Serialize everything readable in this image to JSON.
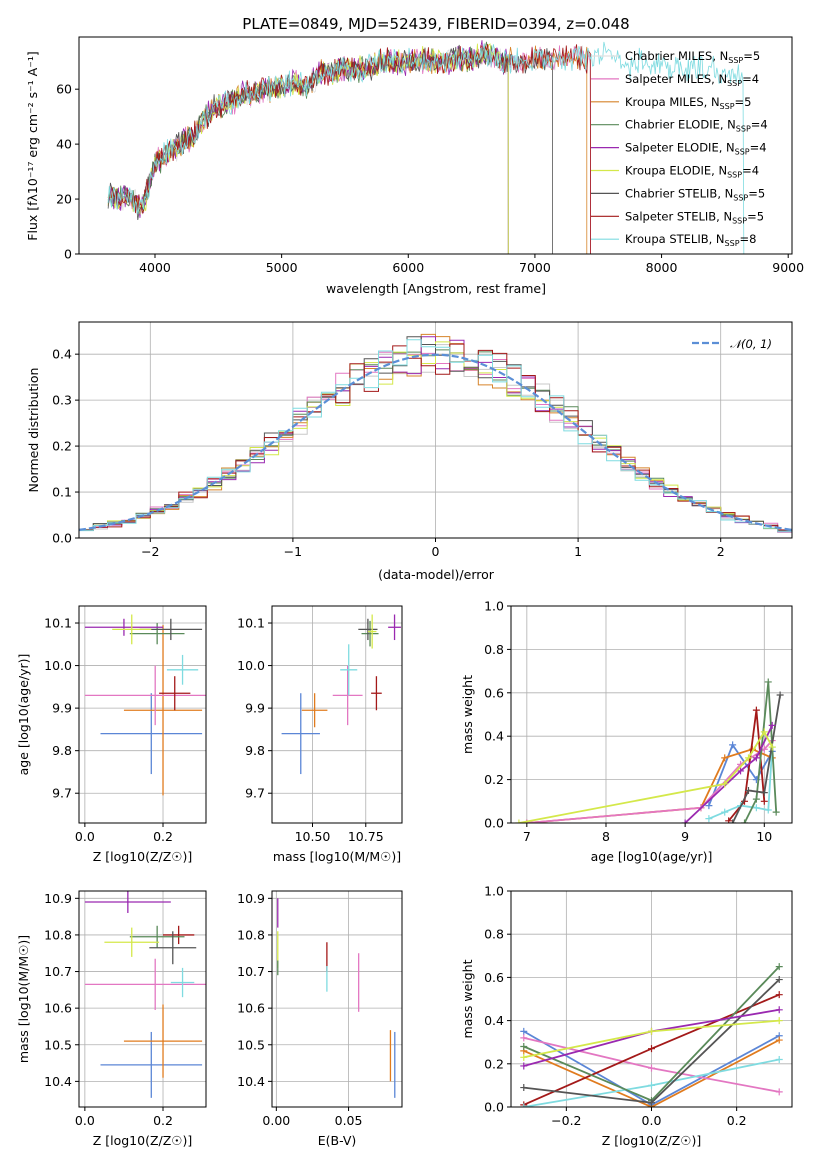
{
  "colors": {
    "Chabrier MILES": "#e0e0e0",
    "Salpeter MILES": "#e377c2",
    "Kroupa MILES": "#d6842a",
    "Chabrier ELODIE": "#5a8a5a",
    "Salpeter ELODIE": "#9a29b0",
    "Kroupa ELODIE": "#d4e84a",
    "Chabrier STELIB": "#555555",
    "Salpeter STELIB": "#a31919",
    "Kroupa STELIB": "#7fdbe0",
    "blue": "#5b86d6",
    "orange": "#e07b1e",
    "normal": "#5b8fd6"
  },
  "chart_data": [
    {
      "id": "spectrum",
      "type": "line",
      "title": "PLATE=0849, MJD=52439, FIBERID=0394, z=0.048",
      "xlabel": "wavelength [Angstrom, rest frame]",
      "ylabel": "Flux [fλ10⁻¹⁷ erg cm⁻² s⁻¹ A⁻¹]",
      "xlim": [
        3400,
        9030
      ],
      "ylim": [
        0,
        79
      ],
      "xticks": [
        4000,
        5000,
        6000,
        7000,
        8000,
        9000
      ],
      "yticks": [
        0,
        20,
        40,
        60
      ],
      "continuum": [
        [
          3630,
          22
        ],
        [
          3700,
          20
        ],
        [
          3800,
          21
        ],
        [
          3880,
          17
        ],
        [
          3920,
          20
        ],
        [
          4000,
          33
        ],
        [
          4100,
          37
        ],
        [
          4200,
          40
        ],
        [
          4300,
          43
        ],
        [
          4400,
          50
        ],
        [
          4500,
          54
        ],
        [
          4600,
          55
        ],
        [
          4700,
          58
        ],
        [
          4800,
          59
        ],
        [
          4900,
          60
        ],
        [
          5000,
          61
        ],
        [
          5100,
          62
        ],
        [
          5200,
          61
        ],
        [
          5300,
          66
        ],
        [
          5400,
          66
        ],
        [
          5500,
          68
        ],
        [
          5600,
          67
        ],
        [
          5700,
          68
        ],
        [
          5800,
          70
        ],
        [
          5900,
          70
        ],
        [
          6000,
          70
        ],
        [
          6100,
          71
        ],
        [
          6200,
          70
        ],
        [
          6300,
          70
        ],
        [
          6400,
          71
        ],
        [
          6500,
          71
        ],
        [
          6600,
          73
        ],
        [
          6700,
          71
        ],
        [
          6800,
          70
        ],
        [
          6900,
          70
        ],
        [
          7000,
          71
        ],
        [
          7100,
          70
        ],
        [
          7200,
          71
        ],
        [
          7300,
          71
        ],
        [
          7400,
          71
        ],
        [
          7500,
          73
        ],
        [
          7600,
          72
        ],
        [
          7700,
          68
        ],
        [
          7800,
          70
        ],
        [
          7900,
          69
        ],
        [
          8000,
          69
        ],
        [
          8100,
          68
        ],
        [
          8200,
          68
        ],
        [
          8300,
          67
        ],
        [
          8400,
          67
        ],
        [
          8500,
          66
        ],
        [
          8600,
          66
        ],
        [
          8700,
          65
        ]
      ],
      "series": [
        {
          "name": "Chabrier MILES, N_SSP=5",
          "color": "#e0e0e0",
          "xmax": 7440
        },
        {
          "name": "Salpeter MILES, N_SSP=4",
          "color": "#e377c2",
          "xmax": 7440
        },
        {
          "name": "Kroupa MILES, N_SSP=5",
          "color": "#d6842a",
          "xmax": 7410
        },
        {
          "name": "Chabrier ELODIE, N_SSP=4",
          "color": "#5a8a5a",
          "xmax": 6790
        },
        {
          "name": "Salpeter ELODIE, N_SSP=4",
          "color": "#9a29b0",
          "xmax": 6790
        },
        {
          "name": "Kroupa ELODIE, N_SSP=4",
          "color": "#d4e84a",
          "xmax": 6790
        },
        {
          "name": "Chabrier STELIB, N_SSP=5",
          "color": "#555555",
          "xmax": 7140
        },
        {
          "name": "Salpeter STELIB, N_SSP=5",
          "color": "#a31919",
          "xmax": 7440
        },
        {
          "name": "Kroupa STELIB, N_SSP=8",
          "color": "#7fdbe0",
          "xmax": 8650
        }
      ],
      "legend": [
        "Chabrier MILES, N",
        "Salpeter MILES, N",
        "Kroupa MILES, N",
        "Chabrier ELODIE, N",
        "Salpeter ELODIE, N",
        "Kroupa ELODIE, N",
        "Chabrier STELIB, N",
        "Salpeter STELIB, N",
        "Kroupa STELIB, N"
      ],
      "legend_sub": "SSP",
      "legend_n": [
        "=5",
        "=4",
        "=5",
        "=4",
        "=4",
        "=4",
        "=5",
        "=5",
        "=8"
      ],
      "legend_position": "right"
    },
    {
      "id": "residuals",
      "type": "histogram",
      "xlabel": "(data-model)/error",
      "ylabel": "Normed distribution",
      "xlim": [
        -2.5,
        2.5
      ],
      "ylim": [
        0,
        0.47
      ],
      "xticks": [
        -2,
        -1,
        0,
        1,
        2
      ],
      "yticks": [
        0.0,
        0.1,
        0.2,
        0.3,
        0.4
      ],
      "bin_width": 0.1,
      "normal_label": "N(0,1)",
      "grid": true,
      "legend_position": "top-right"
    },
    {
      "id": "age-vs-Z",
      "type": "errorbar",
      "xlabel": "Z [log10(Z/Z☉)]",
      "ylabel": "age  [log10(age/yr)]",
      "xlim": [
        -0.015,
        0.31
      ],
      "ylim": [
        9.63,
        10.14
      ],
      "xticks": [
        0.0,
        0.2
      ],
      "yticks": [
        9.7,
        9.8,
        9.9,
        10.0,
        10.1
      ],
      "points": [
        {
          "color": "#5b86d6",
          "x": 0.17,
          "xerr": 0.13,
          "y": 9.84,
          "yerr": 0.095
        },
        {
          "color": "#e07b1e",
          "x": 0.2,
          "xerr": 0.1,
          "y": 9.895,
          "yerr": 0.2
        },
        {
          "color": "#e377c2",
          "x": 0.18,
          "xerr": 0.18,
          "y": 9.93,
          "yerr": 0.07
        },
        {
          "color": "#a31919",
          "x": 0.23,
          "xerr": 0.04,
          "y": 9.935,
          "yerr": 0.04
        },
        {
          "color": "#7fdbe0",
          "x": 0.25,
          "xerr": 0.04,
          "y": 9.99,
          "yerr": 0.035
        },
        {
          "color": "#5a8a5a",
          "x": 0.185,
          "xerr": 0.07,
          "y": 10.075,
          "yerr": 0.025
        },
        {
          "color": "#555555",
          "x": 0.22,
          "xerr": 0.08,
          "y": 10.085,
          "yerr": 0.025
        },
        {
          "color": "#9a29b0",
          "x": 0.1,
          "xerr": 0.1,
          "y": 10.09,
          "yerr": 0.02
        },
        {
          "color": "#d4e84a",
          "x": 0.12,
          "xerr": 0.05,
          "y": 10.085,
          "yerr": 0.035
        }
      ]
    },
    {
      "id": "age-vs-mass",
      "type": "errorbar",
      "xlabel": "mass [log10(M/M☉)]",
      "ylabel": "",
      "xlim": [
        10.31,
        10.92
      ],
      "ylim": [
        9.63,
        10.14
      ],
      "xticks": [
        10.5,
        10.75
      ],
      "yticks": [
        9.7,
        9.8,
        9.9,
        10.0,
        10.1
      ],
      "points": [
        {
          "color": "#5b86d6",
          "x": 10.445,
          "xerr": 0.09,
          "y": 9.84,
          "yerr": 0.095
        },
        {
          "color": "#e07b1e",
          "x": 10.51,
          "xerr": 0.06,
          "y": 9.895,
          "yerr": 0.04
        },
        {
          "color": "#e377c2",
          "x": 10.665,
          "xerr": 0.07,
          "y": 9.93,
          "yerr": 0.07
        },
        {
          "color": "#a31919",
          "x": 10.8,
          "xerr": 0.025,
          "y": 9.935,
          "yerr": 0.04
        },
        {
          "color": "#7fdbe0",
          "x": 10.67,
          "xerr": 0.04,
          "y": 9.99,
          "yerr": 0.06
        },
        {
          "color": "#5a8a5a",
          "x": 10.77,
          "xerr": 0.04,
          "y": 10.075,
          "yerr": 0.03
        },
        {
          "color": "#555555",
          "x": 10.76,
          "xerr": 0.045,
          "y": 10.085,
          "yerr": 0.025
        },
        {
          "color": "#9a29b0",
          "x": 10.885,
          "xerr": 0.03,
          "y": 10.09,
          "yerr": 0.03
        },
        {
          "color": "#d4e84a",
          "x": 10.78,
          "xerr": 0.02,
          "y": 10.08,
          "yerr": 0.04
        }
      ]
    },
    {
      "id": "weight-vs-age",
      "type": "line",
      "xlabel": "age  [log10(age/yr)]",
      "ylabel": "mass weight",
      "xlim": [
        6.8,
        10.35
      ],
      "ylim": [
        0,
        1.0
      ],
      "xticks": [
        7,
        8,
        9,
        10
      ],
      "yticks": [
        0.0,
        0.2,
        0.4,
        0.6,
        0.8,
        1.0
      ],
      "series": [
        {
          "color": "#5b86d6",
          "x": [
            9.3,
            9.6,
            9.9,
            10.1
          ],
          "y": [
            0.08,
            0.36,
            0.2,
            0.33
          ]
        },
        {
          "color": "#e07b1e",
          "x": [
            7.0,
            9.2,
            9.5,
            9.85,
            10.1
          ],
          "y": [
            0.0,
            0.07,
            0.3,
            0.34,
            0.3
          ]
        },
        {
          "color": "#e377c2",
          "x": [
            7.0,
            9.2,
            9.7,
            10.0,
            10.1
          ],
          "y": [
            0.0,
            0.07,
            0.27,
            0.34,
            0.38
          ]
        },
        {
          "color": "#a31919",
          "x": [
            9.55,
            9.75,
            9.9,
            10.0
          ],
          "y": [
            0.01,
            0.1,
            0.52,
            0.1
          ]
        },
        {
          "color": "#7fdbe0",
          "x": [
            9.3,
            9.5,
            9.7,
            9.9,
            10.05,
            10.1
          ],
          "y": [
            0.02,
            0.05,
            0.08,
            0.07,
            0.06,
            0.35
          ]
        },
        {
          "color": "#5a8a5a",
          "x": [
            9.75,
            9.9,
            10.05,
            10.15
          ],
          "y": [
            0.0,
            0.11,
            0.65,
            0.05
          ]
        },
        {
          "color": "#555555",
          "x": [
            9.6,
            9.8,
            10.0,
            10.2
          ],
          "y": [
            0.0,
            0.15,
            0.14,
            0.59
          ]
        },
        {
          "color": "#9a29b0",
          "x": [
            9.0,
            9.7,
            9.9,
            10.1
          ],
          "y": [
            0.0,
            0.24,
            0.3,
            0.45
          ]
        },
        {
          "color": "#d4e84a",
          "x": [
            6.9,
            9.5,
            9.8,
            10.0,
            10.1
          ],
          "y": [
            0.0,
            0.18,
            0.3,
            0.42,
            0.35
          ]
        }
      ]
    },
    {
      "id": "mass-vs-Z",
      "type": "errorbar",
      "xlabel": "Z [log10(Z/Z☉)]",
      "ylabel": "mass [log10(M/M☉)]",
      "xlim": [
        -0.015,
        0.31
      ],
      "ylim": [
        10.33,
        10.92
      ],
      "xticks": [
        0.0,
        0.2
      ],
      "yticks": [
        10.4,
        10.5,
        10.6,
        10.7,
        10.8,
        10.9
      ],
      "points": [
        {
          "color": "#5b86d6",
          "x": 0.17,
          "xerr": 0.13,
          "y": 10.445,
          "yerr": 0.09
        },
        {
          "color": "#e07b1e",
          "x": 0.2,
          "xerr": 0.1,
          "y": 10.51,
          "yerr": 0.1
        },
        {
          "color": "#e377c2",
          "x": 0.18,
          "xerr": 0.18,
          "y": 10.665,
          "yerr": 0.07
        },
        {
          "color": "#a31919",
          "x": 0.24,
          "xerr": 0.04,
          "y": 10.8,
          "yerr": 0.025
        },
        {
          "color": "#7fdbe0",
          "x": 0.25,
          "xerr": 0.03,
          "y": 10.67,
          "yerr": 0.04
        },
        {
          "color": "#5a8a5a",
          "x": 0.185,
          "xerr": 0.07,
          "y": 10.795,
          "yerr": 0.03
        },
        {
          "color": "#555555",
          "x": 0.225,
          "xerr": 0.06,
          "y": 10.765,
          "yerr": 0.045
        },
        {
          "color": "#9a29b0",
          "x": 0.11,
          "xerr": 0.11,
          "y": 10.89,
          "yerr": 0.03
        },
        {
          "color": "#d4e84a",
          "x": 0.12,
          "xerr": 0.07,
          "y": 10.78,
          "yerr": 0.04
        }
      ]
    },
    {
      "id": "mass-vs-EBV",
      "type": "errorbar",
      "xlabel": "E(B-V)",
      "ylabel": "",
      "xlim": [
        -0.003,
        0.087
      ],
      "ylim": [
        10.33,
        10.92
      ],
      "xticks": [
        0.0,
        0.05
      ],
      "yticks": [
        10.4,
        10.5,
        10.6,
        10.7,
        10.8,
        10.9
      ],
      "points": [
        {
          "color": "#5b86d6",
          "x": 0.082,
          "xerr": 0,
          "y": 10.445,
          "yerr": 0.09
        },
        {
          "color": "#e07b1e",
          "x": 0.079,
          "xerr": 0,
          "y": 10.47,
          "yerr": 0.07
        },
        {
          "color": "#e377c2",
          "x": 0.057,
          "xerr": 0,
          "y": 10.67,
          "yerr": 0.08
        },
        {
          "color": "#a31919",
          "x": 0.035,
          "xerr": 0,
          "y": 10.74,
          "yerr": 0.04
        },
        {
          "color": "#7fdbe0",
          "x": 0.035,
          "xerr": 0,
          "y": 10.68,
          "yerr": 0.035
        },
        {
          "color": "#9a29b0",
          "x": 0.001,
          "xerr": 0,
          "y": 10.86,
          "yerr": 0.04
        },
        {
          "color": "#d4e84a",
          "x": 0.001,
          "xerr": 0,
          "y": 10.76,
          "yerr": 0.05
        },
        {
          "color": "#5a8a5a",
          "x": 0.001,
          "xerr": 0,
          "y": 10.71,
          "yerr": 0.02
        }
      ]
    },
    {
      "id": "weight-vs-Z",
      "type": "line",
      "xlabel": "Z [log10(Z/Z☉)]",
      "ylabel": "mass weight",
      "xlim": [
        -0.33,
        0.33
      ],
      "ylim": [
        0,
        1.0
      ],
      "xticks": [
        -0.2,
        0.0,
        0.2
      ],
      "yticks": [
        0.0,
        0.2,
        0.4,
        0.6,
        0.8,
        1.0
      ],
      "series": [
        {
          "color": "#5b86d6",
          "x": [
            -0.3,
            0.0,
            0.3
          ],
          "y": [
            0.35,
            0.01,
            0.33
          ]
        },
        {
          "color": "#e07b1e",
          "x": [
            -0.3,
            0.0,
            0.3
          ],
          "y": [
            0.26,
            0.0,
            0.31
          ]
        },
        {
          "color": "#e377c2",
          "x": [
            -0.3,
            0.0,
            0.3
          ],
          "y": [
            0.32,
            0.18,
            0.07
          ]
        },
        {
          "color": "#a31919",
          "x": [
            -0.3,
            0.0,
            0.3
          ],
          "y": [
            0.01,
            0.27,
            0.52
          ]
        },
        {
          "color": "#7fdbe0",
          "x": [
            -0.3,
            0.0,
            0.3
          ],
          "y": [
            0.0,
            0.1,
            0.22
          ]
        },
        {
          "color": "#5a8a5a",
          "x": [
            -0.3,
            0.0,
            0.3
          ],
          "y": [
            0.28,
            0.03,
            0.65
          ]
        },
        {
          "color": "#555555",
          "x": [
            -0.3,
            0.0,
            0.3
          ],
          "y": [
            0.09,
            0.02,
            0.59
          ]
        },
        {
          "color": "#9a29b0",
          "x": [
            -0.3,
            0.0,
            0.3
          ],
          "y": [
            0.19,
            0.35,
            0.45
          ]
        },
        {
          "color": "#d4e84a",
          "x": [
            -0.3,
            0.0,
            0.3
          ],
          "y": [
            0.23,
            0.35,
            0.4
          ]
        }
      ]
    }
  ]
}
